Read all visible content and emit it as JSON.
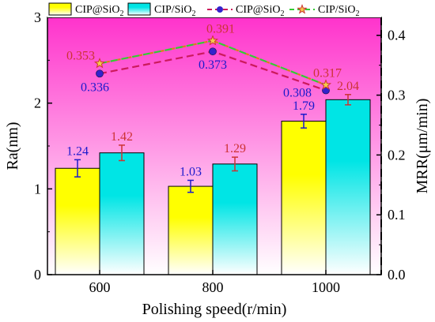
{
  "chart_data": {
    "type": "bar",
    "categories": [
      "600",
      "800",
      "1000"
    ],
    "xlabel": "Polishing speed(r/min)",
    "ylabel": "Ra(nm)",
    "ylabel_right": "MRR(μm/min)",
    "ylim": [
      0,
      3
    ],
    "ylim_right": [
      0,
      0.43
    ],
    "yticks": [
      "0",
      "1",
      "2",
      "3"
    ],
    "yticks_right": [
      "0.0",
      "0.1",
      "0.2",
      "0.3",
      "0.4"
    ],
    "grid": false,
    "legend_position": "top",
    "bar_series": [
      {
        "name": "CIP@SiO",
        "name_sub": "2",
        "values": [
          1.24,
          1.03,
          1.79
        ],
        "labels": [
          "1.24",
          "1.03",
          "1.79"
        ],
        "errors": [
          0.1,
          0.07,
          0.08
        ],
        "color_top": "#ffff00",
        "color_bottom": "#ffffff",
        "label_color": "#1a1acc"
      },
      {
        "name": "CIP/SiO",
        "name_sub": "2",
        "values": [
          1.42,
          1.29,
          2.04
        ],
        "labels": [
          "1.42",
          "1.29",
          "2.04"
        ],
        "errors": [
          0.09,
          0.08,
          0.06
        ],
        "color_top": "#00e5e5",
        "color_bottom": "#ffffff",
        "label_color": "#cc3333"
      }
    ],
    "line_series": [
      {
        "name": "CIP@SiO",
        "name_sub": "2",
        "axis": "right",
        "values": [
          0.336,
          0.373,
          0.308
        ],
        "labels": [
          "0.336",
          "0.373",
          "0.308"
        ],
        "marker": "circle",
        "color": "#cc1a5c",
        "marker_color": "#3322cc",
        "label_color": "#1a1acc"
      },
      {
        "name": "CIP/SiO",
        "name_sub": "2",
        "axis": "right",
        "values": [
          0.353,
          0.391,
          0.317
        ],
        "labels": [
          "0.353",
          "0.391",
          "0.317"
        ],
        "marker": "star",
        "color": "#33cc33",
        "color_dash2": "#e07a1a",
        "marker_color": "#cc3333",
        "label_color": "#cc3333"
      }
    ],
    "background": {
      "top_color": "#ff33cc",
      "bottom_color": "#ffffff"
    }
  }
}
